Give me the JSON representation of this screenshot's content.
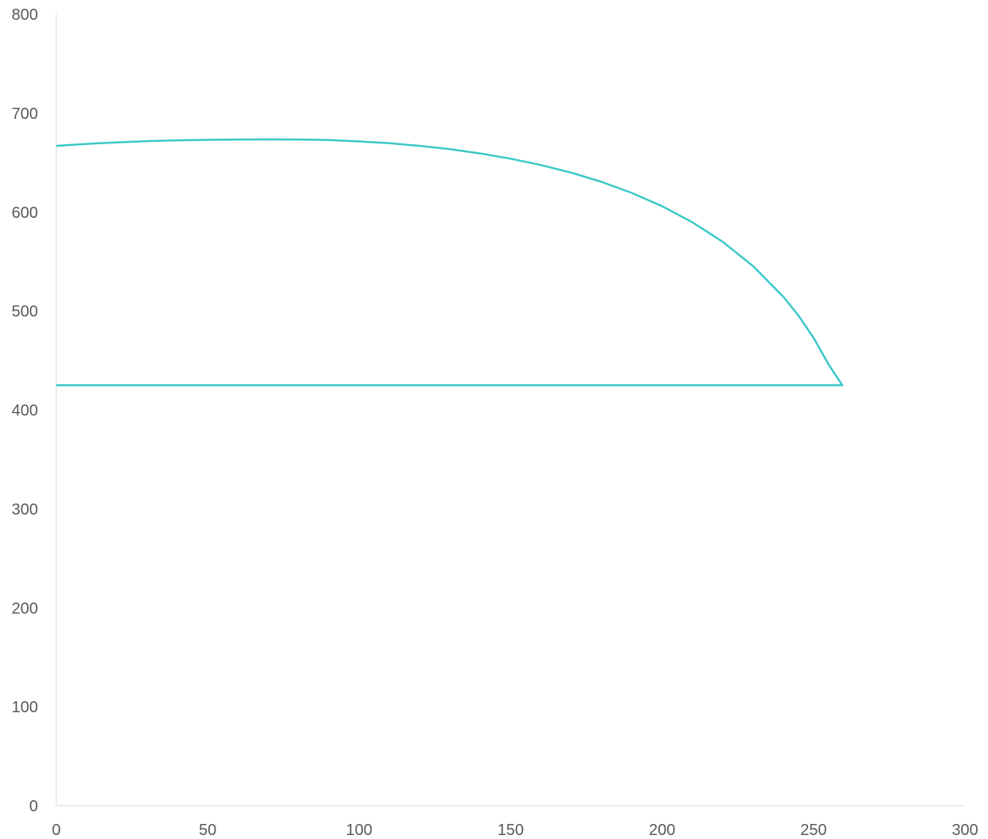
{
  "chart_data": {
    "type": "scatter",
    "title": "",
    "xlabel": "",
    "ylabel": "",
    "xlim": [
      0,
      300
    ],
    "ylim": [
      0,
      800
    ],
    "x_ticks": [
      0,
      50,
      100,
      150,
      200,
      250,
      300
    ],
    "y_ticks": [
      0,
      100,
      200,
      300,
      400,
      500,
      600,
      700,
      800
    ],
    "grid": false,
    "legend": "none",
    "series": [
      {
        "color": "#3BC8C8",
        "points": [
          [
            0,
            667
          ],
          [
            10,
            669
          ],
          [
            20,
            670.5
          ],
          [
            30,
            671.8
          ],
          [
            40,
            672.6
          ],
          [
            50,
            673.1
          ],
          [
            60,
            673.4
          ],
          [
            70,
            673.5
          ],
          [
            80,
            673.4
          ],
          [
            90,
            672.8
          ],
          [
            100,
            671.5
          ],
          [
            110,
            669.6
          ],
          [
            120,
            667.0
          ],
          [
            130,
            663.6
          ],
          [
            140,
            659.3
          ],
          [
            150,
            654.0
          ],
          [
            160,
            647.6
          ],
          [
            170,
            639.9
          ],
          [
            180,
            630.6
          ],
          [
            190,
            619.4
          ],
          [
            200,
            606.0
          ],
          [
            210,
            589.8
          ],
          [
            220,
            570.0
          ],
          [
            230,
            545.5
          ],
          [
            240,
            514.5
          ],
          [
            245,
            495.5
          ],
          [
            250,
            473.0
          ],
          [
            255,
            446.0
          ],
          [
            259.5,
            425
          ],
          [
            250,
            425
          ],
          [
            200,
            425
          ],
          [
            150,
            425
          ],
          [
            100,
            425
          ],
          [
            50,
            425
          ],
          [
            0,
            425
          ]
        ]
      }
    ]
  }
}
